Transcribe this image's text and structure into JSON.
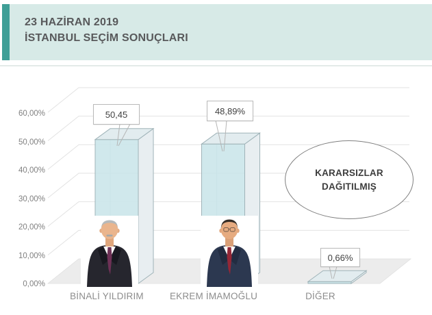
{
  "header": {
    "title_line1": "23 HAZİRAN 2019",
    "title_line2": "İSTANBUL SEÇİM SONUÇLARI",
    "accent_color": "#3f9f97",
    "background_color": "#d7eae7"
  },
  "chart_data": {
    "type": "bar",
    "style": "3d-column",
    "categories": [
      "BİNALİ YILDIRIM",
      "EKREM İMAMOĞLU",
      "DİĞER"
    ],
    "values": [
      50.45,
      48.89,
      0.66
    ],
    "value_labels": [
      "50,45",
      "48,89%",
      "0,66%"
    ],
    "y_ticks": [
      "60,00%",
      "50,00%",
      "40,00%",
      "30,00%",
      "20,00%",
      "10,00%",
      "0,00%"
    ],
    "ylim": [
      0,
      60
    ],
    "grid": true,
    "legend": "none",
    "annotation": {
      "line1": "KARARSIZLAR",
      "line2": "DAĞITILMIŞ"
    },
    "colors": {
      "bar_front": "#cbe5ea",
      "bar_side": "#e8eef1",
      "bar_top": "#e2ecef",
      "floor": "#ececec",
      "gridline": "#e2e2e2"
    }
  }
}
